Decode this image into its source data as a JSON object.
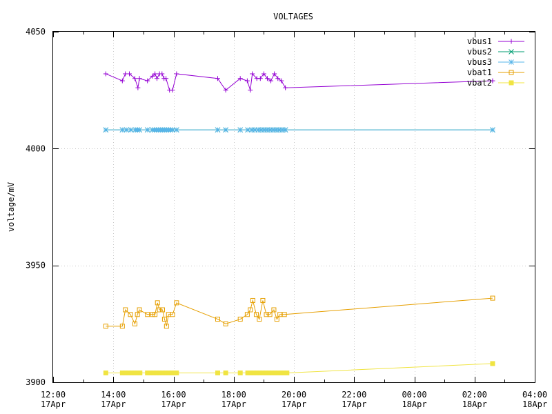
{
  "chart_data": {
    "type": "line",
    "title": "VOLTAGES",
    "xlabel": "",
    "ylabel": "voltage/mV",
    "ylim": [
      3900,
      4050
    ],
    "xlim": [
      "2023-04-17T12:00",
      "2023-04-18T04:00"
    ],
    "grid": true,
    "legend_position": "top-right",
    "y_ticks": [
      {
        "value": 3900,
        "label": "3900"
      },
      {
        "value": 3950,
        "label": "3950"
      },
      {
        "value": 4000,
        "label": "4000"
      },
      {
        "value": 4050,
        "label": "4050"
      }
    ],
    "x_ticks": [
      {
        "x": "2023-04-17T12:00",
        "line1": "12:00",
        "line2": "17Apr"
      },
      {
        "x": "2023-04-17T14:00",
        "line1": "14:00",
        "line2": "17Apr"
      },
      {
        "x": "2023-04-17T16:00",
        "line1": "16:00",
        "line2": "17Apr"
      },
      {
        "x": "2023-04-17T18:00",
        "line1": "18:00",
        "line2": "17Apr"
      },
      {
        "x": "2023-04-17T20:00",
        "line1": "20:00",
        "line2": "17Apr"
      },
      {
        "x": "2023-04-17T22:00",
        "line1": "22:00",
        "line2": "17Apr"
      },
      {
        "x": "2023-04-18T00:00",
        "line1": "00:00",
        "line2": "18Apr"
      },
      {
        "x": "2023-04-18T02:00",
        "line1": "02:00",
        "line2": "18Apr"
      },
      {
        "x": "2023-04-18T04:00",
        "line1": "04:00",
        "line2": "18Apr"
      }
    ],
    "series": [
      {
        "name": "vbus1",
        "color": "#9400d3",
        "marker": "plus",
        "points": [
          [
            "2023-04-17T13:45",
            4032
          ],
          [
            "2023-04-17T14:18",
            4029
          ],
          [
            "2023-04-17T14:24",
            4032
          ],
          [
            "2023-04-17T14:32",
            4032
          ],
          [
            "2023-04-17T14:43",
            4030
          ],
          [
            "2023-04-17T14:49",
            4026
          ],
          [
            "2023-04-17T14:52",
            4030
          ],
          [
            "2023-04-17T15:08",
            4029
          ],
          [
            "2023-04-17T15:18",
            4031
          ],
          [
            "2023-04-17T15:23",
            4032
          ],
          [
            "2023-04-17T15:27",
            4030
          ],
          [
            "2023-04-17T15:32",
            4032
          ],
          [
            "2023-04-17T15:37",
            4032
          ],
          [
            "2023-04-17T15:41",
            4030
          ],
          [
            "2023-04-17T15:45",
            4030
          ],
          [
            "2023-04-17T15:52",
            4025
          ],
          [
            "2023-04-17T15:58",
            4025
          ],
          [
            "2023-04-17T16:06",
            4032
          ],
          [
            "2023-04-17T17:28",
            4030
          ],
          [
            "2023-04-17T17:44",
            4025
          ],
          [
            "2023-04-17T18:13",
            4030
          ],
          [
            "2023-04-17T18:27",
            4029
          ],
          [
            "2023-04-17T18:33",
            4025
          ],
          [
            "2023-04-17T18:37",
            4032
          ],
          [
            "2023-04-17T18:46",
            4030
          ],
          [
            "2023-04-17T18:53",
            4030
          ],
          [
            "2023-04-17T19:00",
            4032
          ],
          [
            "2023-04-17T19:07",
            4030
          ],
          [
            "2023-04-17T19:14",
            4029
          ],
          [
            "2023-04-17T19:21",
            4032
          ],
          [
            "2023-04-17T19:28",
            4030
          ],
          [
            "2023-04-17T19:35",
            4029
          ],
          [
            "2023-04-17T19:43",
            4026
          ],
          [
            "2023-04-18T02:36",
            4029
          ]
        ]
      },
      {
        "name": "vbus2",
        "color": "#009e73",
        "marker": "cross",
        "points": [
          [
            "2023-04-17T13:45",
            4008
          ],
          [
            "2023-04-17T14:18",
            4008
          ],
          [
            "2023-04-17T14:26",
            4008
          ],
          [
            "2023-04-17T14:35",
            4008
          ],
          [
            "2023-04-17T14:44",
            4008
          ],
          [
            "2023-04-17T14:48",
            4008
          ],
          [
            "2023-04-17T14:52",
            4008
          ],
          [
            "2023-04-17T15:08",
            4008
          ],
          [
            "2023-04-17T15:18",
            4008
          ],
          [
            "2023-04-17T15:22",
            4008
          ],
          [
            "2023-04-17T15:26",
            4008
          ],
          [
            "2023-04-17T15:30",
            4008
          ],
          [
            "2023-04-17T15:34",
            4008
          ],
          [
            "2023-04-17T15:38",
            4008
          ],
          [
            "2023-04-17T15:42",
            4008
          ],
          [
            "2023-04-17T15:46",
            4008
          ],
          [
            "2023-04-17T15:50",
            4008
          ],
          [
            "2023-04-17T15:54",
            4008
          ],
          [
            "2023-04-17T15:58",
            4008
          ],
          [
            "2023-04-17T16:06",
            4008
          ],
          [
            "2023-04-17T17:28",
            4008
          ],
          [
            "2023-04-17T17:44",
            4008
          ],
          [
            "2023-04-17T18:13",
            4008
          ],
          [
            "2023-04-17T18:28",
            4008
          ],
          [
            "2023-04-17T18:36",
            4008
          ],
          [
            "2023-04-17T18:42",
            4008
          ],
          [
            "2023-04-17T18:49",
            4008
          ],
          [
            "2023-04-17T18:55",
            4008
          ],
          [
            "2023-04-17T19:01",
            4008
          ],
          [
            "2023-04-17T19:07",
            4008
          ],
          [
            "2023-04-17T19:13",
            4008
          ],
          [
            "2023-04-17T19:19",
            4008
          ],
          [
            "2023-04-17T19:25",
            4008
          ],
          [
            "2023-04-17T19:31",
            4008
          ],
          [
            "2023-04-17T19:37",
            4008
          ],
          [
            "2023-04-17T19:43",
            4008
          ],
          [
            "2023-04-18T02:36",
            4008
          ]
        ]
      },
      {
        "name": "vbus3",
        "color": "#56b4e9",
        "marker": "star",
        "points": [
          [
            "2023-04-17T13:45",
            4008
          ],
          [
            "2023-04-17T14:18",
            4008
          ],
          [
            "2023-04-17T14:26",
            4008
          ],
          [
            "2023-04-17T14:35",
            4008
          ],
          [
            "2023-04-17T14:44",
            4008
          ],
          [
            "2023-04-17T14:48",
            4008
          ],
          [
            "2023-04-17T14:52",
            4008
          ],
          [
            "2023-04-17T15:08",
            4008
          ],
          [
            "2023-04-17T15:18",
            4008
          ],
          [
            "2023-04-17T15:22",
            4008
          ],
          [
            "2023-04-17T15:26",
            4008
          ],
          [
            "2023-04-17T15:30",
            4008
          ],
          [
            "2023-04-17T15:34",
            4008
          ],
          [
            "2023-04-17T15:38",
            4008
          ],
          [
            "2023-04-17T15:42",
            4008
          ],
          [
            "2023-04-17T15:46",
            4008
          ],
          [
            "2023-04-17T15:50",
            4008
          ],
          [
            "2023-04-17T15:54",
            4008
          ],
          [
            "2023-04-17T15:58",
            4008
          ],
          [
            "2023-04-17T16:06",
            4008
          ],
          [
            "2023-04-17T17:28",
            4008
          ],
          [
            "2023-04-17T17:44",
            4008
          ],
          [
            "2023-04-17T18:13",
            4008
          ],
          [
            "2023-04-17T18:28",
            4008
          ],
          [
            "2023-04-17T18:36",
            4008
          ],
          [
            "2023-04-17T18:42",
            4008
          ],
          [
            "2023-04-17T18:49",
            4008
          ],
          [
            "2023-04-17T18:55",
            4008
          ],
          [
            "2023-04-17T19:01",
            4008
          ],
          [
            "2023-04-17T19:07",
            4008
          ],
          [
            "2023-04-17T19:13",
            4008
          ],
          [
            "2023-04-17T19:19",
            4008
          ],
          [
            "2023-04-17T19:25",
            4008
          ],
          [
            "2023-04-17T19:31",
            4008
          ],
          [
            "2023-04-17T19:37",
            4008
          ],
          [
            "2023-04-17T19:43",
            4008
          ],
          [
            "2023-04-18T02:36",
            4008
          ]
        ]
      },
      {
        "name": "vbat1",
        "color": "#e69f00",
        "marker": "open-square",
        "points": [
          [
            "2023-04-17T13:45",
            3924
          ],
          [
            "2023-04-17T14:18",
            3924
          ],
          [
            "2023-04-17T14:24",
            3931
          ],
          [
            "2023-04-17T14:34",
            3929
          ],
          [
            "2023-04-17T14:43",
            3925
          ],
          [
            "2023-04-17T14:48",
            3929
          ],
          [
            "2023-04-17T14:52",
            3931
          ],
          [
            "2023-04-17T15:08",
            3929
          ],
          [
            "2023-04-17T15:18",
            3929
          ],
          [
            "2023-04-17T15:23",
            3929
          ],
          [
            "2023-04-17T15:28",
            3934
          ],
          [
            "2023-04-17T15:32",
            3931
          ],
          [
            "2023-04-17T15:38",
            3931
          ],
          [
            "2023-04-17T15:42",
            3927
          ],
          [
            "2023-04-17T15:46",
            3924
          ],
          [
            "2023-04-17T15:50",
            3929
          ],
          [
            "2023-04-17T15:58",
            3929
          ],
          [
            "2023-04-17T16:06",
            3934
          ],
          [
            "2023-04-17T17:28",
            3927
          ],
          [
            "2023-04-17T17:44",
            3925
          ],
          [
            "2023-04-17T18:13",
            3927
          ],
          [
            "2023-04-17T18:27",
            3929
          ],
          [
            "2023-04-17T18:33",
            3931
          ],
          [
            "2023-04-17T18:38",
            3935
          ],
          [
            "2023-04-17T18:45",
            3929
          ],
          [
            "2023-04-17T18:51",
            3927
          ],
          [
            "2023-04-17T18:58",
            3935
          ],
          [
            "2023-04-17T19:05",
            3929
          ],
          [
            "2023-04-17T19:12",
            3929
          ],
          [
            "2023-04-17T19:20",
            3931
          ],
          [
            "2023-04-17T19:26",
            3927
          ],
          [
            "2023-04-17T19:32",
            3929
          ],
          [
            "2023-04-17T19:41",
            3929
          ],
          [
            "2023-04-18T02:36",
            3936
          ]
        ]
      },
      {
        "name": "vbat2",
        "color": "#f0e442",
        "marker": "filled-square",
        "points": [
          [
            "2023-04-17T13:45",
            3904
          ],
          [
            "2023-04-17T14:18",
            3904
          ],
          [
            "2023-04-17T14:24",
            3904
          ],
          [
            "2023-04-17T14:30",
            3904
          ],
          [
            "2023-04-17T14:36",
            3904
          ],
          [
            "2023-04-17T14:42",
            3904
          ],
          [
            "2023-04-17T14:48",
            3904
          ],
          [
            "2023-04-17T14:53",
            3904
          ],
          [
            "2023-04-17T15:08",
            3904
          ],
          [
            "2023-04-17T15:14",
            3904
          ],
          [
            "2023-04-17T15:20",
            3904
          ],
          [
            "2023-04-17T15:26",
            3904
          ],
          [
            "2023-04-17T15:32",
            3904
          ],
          [
            "2023-04-17T15:38",
            3904
          ],
          [
            "2023-04-17T15:44",
            3904
          ],
          [
            "2023-04-17T15:50",
            3904
          ],
          [
            "2023-04-17T15:56",
            3904
          ],
          [
            "2023-04-17T16:02",
            3904
          ],
          [
            "2023-04-17T16:06",
            3904
          ],
          [
            "2023-04-17T17:28",
            3904
          ],
          [
            "2023-04-17T17:44",
            3904
          ],
          [
            "2023-04-17T18:13",
            3904
          ],
          [
            "2023-04-17T18:28",
            3904
          ],
          [
            "2023-04-17T18:34",
            3904
          ],
          [
            "2023-04-17T18:40",
            3904
          ],
          [
            "2023-04-17T18:46",
            3904
          ],
          [
            "2023-04-17T18:52",
            3904
          ],
          [
            "2023-04-17T18:58",
            3904
          ],
          [
            "2023-04-17T19:04",
            3904
          ],
          [
            "2023-04-17T19:10",
            3904
          ],
          [
            "2023-04-17T19:16",
            3904
          ],
          [
            "2023-04-17T19:22",
            3904
          ],
          [
            "2023-04-17T19:28",
            3904
          ],
          [
            "2023-04-17T19:34",
            3904
          ],
          [
            "2023-04-17T19:40",
            3904
          ],
          [
            "2023-04-17T19:46",
            3904
          ],
          [
            "2023-04-18T02:36",
            3908
          ]
        ]
      }
    ]
  }
}
